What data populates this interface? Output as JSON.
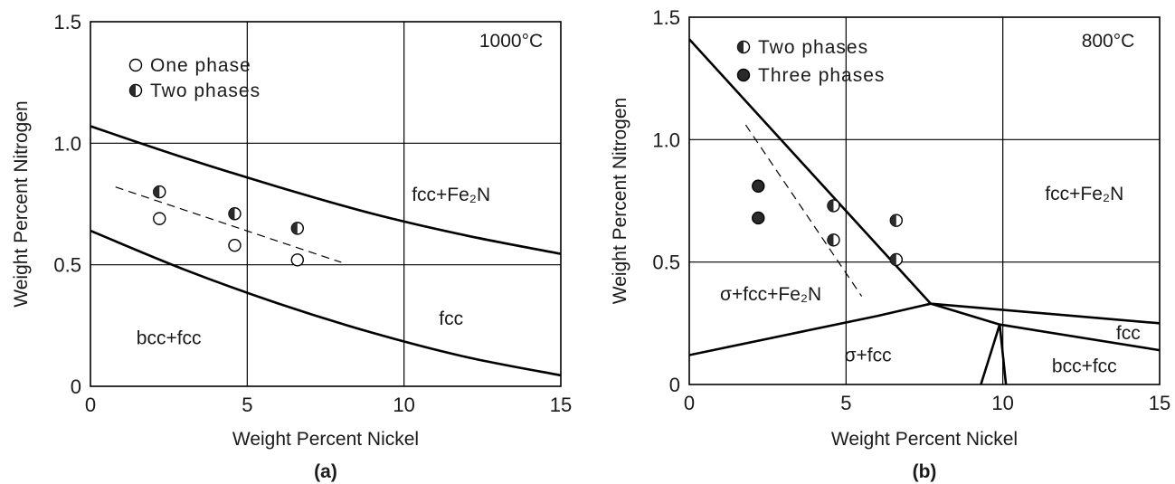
{
  "chart_data": [
    {
      "type": "scatter",
      "panel": "(a)",
      "xlabel": "Weight Percent Nickel",
      "ylabel": "Weight Percent Nitrogen",
      "xlim": [
        0,
        15
      ],
      "ylim": [
        0,
        1.5
      ],
      "x_ticks": [
        "0",
        "5",
        "10",
        "15"
      ],
      "y_ticks": [
        "0",
        "0.5",
        "1.0",
        "1.5"
      ],
      "grid": true,
      "temperature_label": "1000°C",
      "legend": {
        "placement": "top-left",
        "entries": [
          {
            "label": "One phase",
            "marker": "open"
          },
          {
            "label": "Two phases",
            "marker": "half"
          }
        ]
      },
      "boundaries": [
        {
          "style": "solid",
          "points": [
            [
              0,
              1.07
            ],
            [
              3,
              0.94
            ],
            [
              6,
              0.82
            ],
            [
              9,
              0.71
            ],
            [
              12,
              0.62
            ],
            [
              15,
              0.545
            ]
          ]
        },
        {
          "style": "solid",
          "points": [
            [
              0,
              0.64
            ],
            [
              3,
              0.48
            ],
            [
              6,
              0.34
            ],
            [
              9,
              0.22
            ],
            [
              12,
              0.12
            ],
            [
              15,
              0.045
            ]
          ]
        },
        {
          "style": "dashed",
          "points": [
            [
              0.8,
              0.82
            ],
            [
              8,
              0.51
            ]
          ]
        }
      ],
      "regions": [
        {
          "label": "fcc+Fe₂N",
          "x": 11.5,
          "y": 0.79
        },
        {
          "label": "fcc",
          "x": 11.5,
          "y": 0.28
        },
        {
          "label": "bcc+fcc",
          "x": 2.5,
          "y": 0.2
        }
      ],
      "series": [
        {
          "name": "One phase",
          "marker": "open",
          "points": [
            [
              2.2,
              0.69
            ],
            [
              4.6,
              0.58
            ],
            [
              6.6,
              0.52
            ]
          ]
        },
        {
          "name": "Two phases",
          "marker": "half",
          "points": [
            [
              2.2,
              0.8
            ],
            [
              4.6,
              0.71
            ],
            [
              6.6,
              0.65
            ]
          ]
        }
      ]
    },
    {
      "type": "scatter",
      "panel": "(b)",
      "xlabel": "Weight Percent Nickel",
      "ylabel": "Weight Percent Nitrogen",
      "xlim": [
        0,
        15
      ],
      "ylim": [
        0,
        1.5
      ],
      "x_ticks": [
        "0",
        "5",
        "10",
        "15"
      ],
      "y_ticks": [
        "0",
        "0.5",
        "1.0",
        "1.5"
      ],
      "grid": true,
      "temperature_label": "800°C",
      "legend": {
        "placement": "top-left",
        "entries": [
          {
            "label": "Two phases",
            "marker": "half"
          },
          {
            "label": "Three phases",
            "marker": "filled"
          }
        ]
      },
      "boundaries": [
        {
          "style": "solid",
          "points": [
            [
              0,
              1.41
            ],
            [
              7.7,
              0.33
            ]
          ]
        },
        {
          "style": "solid",
          "points": [
            [
              0,
              0.12
            ],
            [
              3,
              0.2
            ],
            [
              6,
              0.28
            ],
            [
              7.7,
              0.33
            ]
          ]
        },
        {
          "style": "solid",
          "points": [
            [
              7.7,
              0.33
            ],
            [
              15,
              0.25
            ]
          ]
        },
        {
          "style": "solid",
          "points": [
            [
              7.7,
              0.33
            ],
            [
              9.9,
              0.245
            ],
            [
              15,
              0.14
            ]
          ]
        },
        {
          "style": "solid",
          "points": [
            [
              9.3,
              0
            ],
            [
              9.9,
              0.245
            ],
            [
              10.1,
              0
            ]
          ]
        },
        {
          "style": "dashed",
          "points": [
            [
              1.8,
              1.06
            ],
            [
              5.5,
              0.36
            ]
          ]
        }
      ],
      "regions": [
        {
          "label": "fcc+Fe₂N",
          "x": 12.6,
          "y": 0.78
        },
        {
          "label": "σ+fcc+Fe₂N",
          "x": 2.6,
          "y": 0.37
        },
        {
          "label": "σ+fcc",
          "x": 5.7,
          "y": 0.12
        },
        {
          "label": "fcc",
          "x": 14.0,
          "y": 0.21
        },
        {
          "label": "bcc+fcc",
          "x": 12.6,
          "y": 0.075
        }
      ],
      "series": [
        {
          "name": "Two phases",
          "marker": "half",
          "points": [
            [
              4.6,
              0.73
            ],
            [
              4.6,
              0.59
            ],
            [
              6.6,
              0.67
            ],
            [
              6.6,
              0.51
            ]
          ]
        },
        {
          "name": "Three phases",
          "marker": "filled",
          "points": [
            [
              2.2,
              0.81
            ],
            [
              2.2,
              0.68
            ]
          ]
        }
      ]
    }
  ]
}
